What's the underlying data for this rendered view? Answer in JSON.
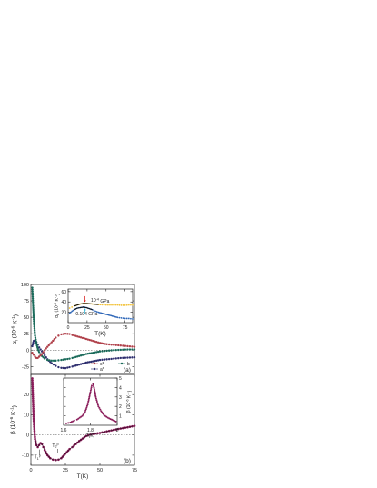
{
  "chart_data": [
    {
      "panel_label": "(a)",
      "type": "scatter",
      "xlabel": "",
      "ylabel": "α_i (10^-6 K^-1)",
      "xlim": [
        0,
        75
      ],
      "ylim": [
        -37,
        100
      ],
      "xticks": [],
      "yticks": [
        -25,
        0,
        25,
        50,
        75,
        100
      ],
      "series": [
        {
          "name": "a*",
          "color": "#2e2e6e",
          "x": [
            1,
            2,
            3,
            4,
            5,
            6,
            8,
            10,
            12,
            15,
            18,
            20,
            22,
            25,
            28,
            30,
            35,
            40,
            45,
            50,
            55,
            60,
            65,
            70,
            75
          ],
          "y": [
            6,
            14,
            15,
            12,
            8,
            4,
            -2,
            -8,
            -14,
            -20,
            -24,
            -26,
            -27,
            -27.5,
            -26,
            -25,
            -22,
            -19,
            -17,
            -15,
            -14,
            -13,
            -12,
            -11.5,
            -11
          ]
        },
        {
          "name": "b",
          "color": "#1a6a5a",
          "x": [
            1,
            2,
            3,
            4,
            5,
            6,
            8,
            10,
            12,
            15,
            18,
            20,
            22,
            25,
            28,
            30,
            35,
            40,
            45,
            50,
            55,
            60,
            65,
            70,
            75
          ],
          "y": [
            95,
            50,
            22,
            10,
            2,
            -3,
            -9,
            -13,
            -15,
            -16,
            -16,
            -15.5,
            -15,
            -14,
            -13,
            -12,
            -9,
            -6,
            -4,
            -2,
            -1,
            0,
            0.5,
            1,
            1
          ]
        },
        {
          "name": "c*",
          "color": "#b0404a",
          "x": [
            1,
            2,
            3,
            4,
            5,
            6,
            8,
            10,
            12,
            15,
            18,
            20,
            22,
            25,
            28,
            30,
            35,
            40,
            45,
            50,
            55,
            60,
            65,
            70,
            75
          ],
          "y": [
            -4,
            -7,
            -10,
            -12,
            -12,
            -10,
            -6,
            0,
            5,
            12,
            19,
            22,
            24,
            25,
            24.5,
            23,
            20,
            17,
            14,
            11,
            9,
            8,
            7,
            6,
            5
          ]
        }
      ],
      "legend": [
        "c*",
        "b",
        "a*"
      ],
      "inset": {
        "xlabel": "T(K)",
        "ylabel": "α_b (10^-6 K^-1)",
        "xlim": [
          0,
          85
        ],
        "ylim": [
          0,
          65
        ],
        "xticks": [
          0,
          25,
          50,
          75
        ],
        "yticks": [
          20,
          40,
          60
        ],
        "series": [
          {
            "name": "10^-4 GPa",
            "color": "#f2c23a",
            "x": [
              2,
              5,
              8,
              12,
              16,
              20,
              24,
              28,
              32,
              36,
              40,
              45,
              50,
              55,
              60,
              65,
              70,
              75,
              80,
              85
            ],
            "y": [
              28,
              30,
              32,
              34,
              36,
              37,
              37,
              36.5,
              36,
              35.5,
              35,
              34.5,
              34,
              34,
              34,
              34,
              33.5,
              33.5,
              34,
              34
            ]
          },
          {
            "name": "0.104 GPa",
            "color": "#2f67b8",
            "x": [
              2,
              5,
              8,
              12,
              16,
              20,
              24,
              28,
              32,
              36,
              40,
              45,
              50,
              55,
              60,
              65,
              70,
              75,
              80,
              85
            ],
            "y": [
              18,
              22,
              25,
              28,
              29,
              30,
              29,
              27,
              25,
              22,
              20,
              18,
              16,
              14,
              12,
              10,
              9,
              8,
              8,
              7
            ]
          }
        ],
        "fit_color": "#111111",
        "arrow_colors": [
          "#d92020",
          "#39b8d8"
        ],
        "labels": [
          "10^-4 GPa",
          "0.104 GPa"
        ]
      }
    },
    {
      "panel_label": "(b)",
      "type": "scatter",
      "xlabel": "T(K)",
      "ylabel": "β (10^-6 K^-1)",
      "xlim": [
        0,
        75
      ],
      "ylim": [
        -15,
        30
      ],
      "xticks": [
        0,
        25,
        50,
        75
      ],
      "yticks": [
        -10,
        0,
        10,
        20
      ],
      "series": [
        {
          "name": "",
          "color": "#8a1c5a",
          "x": [
            1,
            1.5,
            2,
            3,
            4,
            5,
            6,
            7,
            8,
            9,
            10,
            12,
            14,
            16,
            18,
            20,
            22,
            24,
            26,
            28,
            30,
            35,
            40,
            45,
            50,
            55,
            60,
            65,
            70,
            75
          ],
          "y": [
            28,
            18,
            8,
            -2,
            -5,
            -6,
            -5,
            -4,
            -4.5,
            -6,
            -7.5,
            -10,
            -11.5,
            -12.2,
            -12.4,
            -12.2,
            -11.5,
            -10,
            -8.5,
            -7,
            -6,
            -3,
            -0.5,
            0.5,
            1,
            1.8,
            2.5,
            3.2,
            3.8,
            4.5
          ]
        }
      ],
      "annotations": [
        "T_1^p",
        "T_2^p"
      ],
      "inset": {
        "xlabel": "T(K)",
        "ylabel": "β (10^-6 K^-1)",
        "xlim": [
          1.6,
          2.0
        ],
        "ylim": [
          0,
          5
        ],
        "xticks": [
          1.6,
          1.8,
          2.0
        ],
        "yticks": [
          1,
          2,
          3,
          4,
          5
        ],
        "series": [
          {
            "name": "",
            "color": "#8a1c5a",
            "x": [
              1.62,
              1.65,
              1.68,
              1.7,
              1.72,
              1.74,
              1.76,
              1.78,
              1.8,
              1.81,
              1.82,
              1.83,
              1.84,
              1.86,
              1.88,
              1.9,
              1.93,
              1.96,
              1.99
            ],
            "y": [
              0.2,
              0.3,
              0.5,
              0.6,
              0.8,
              1.0,
              1.4,
              2.2,
              3.5,
              4.2,
              4.4,
              3.8,
              3.0,
              2.0,
              1.5,
              1.1,
              0.8,
              0.6,
              0.4
            ]
          }
        ]
      }
    }
  ]
}
